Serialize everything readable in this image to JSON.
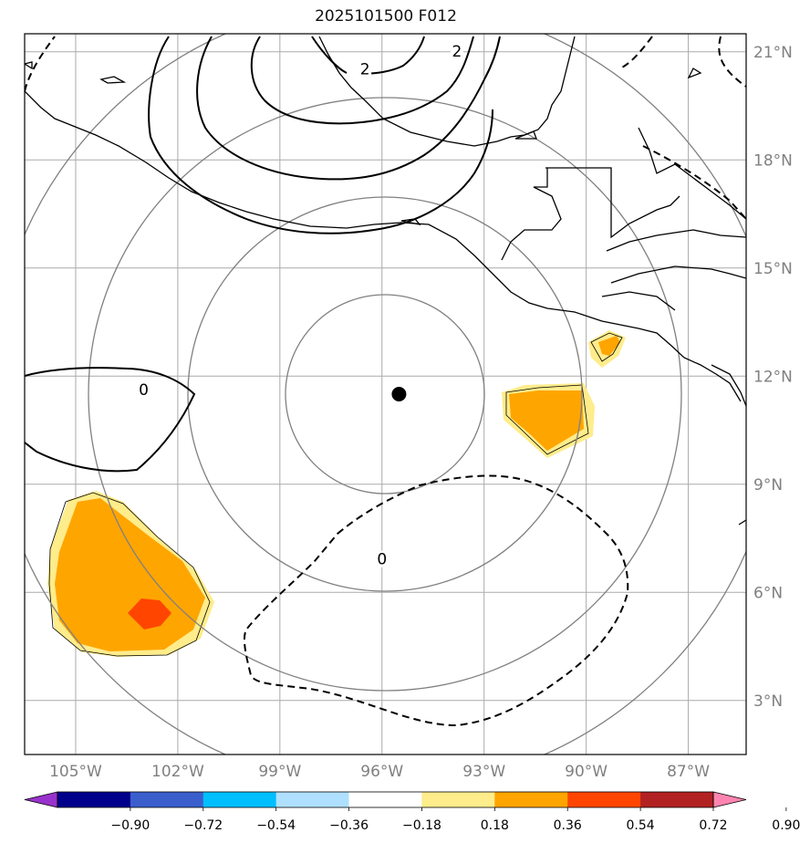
{
  "title": "2025101500 F012",
  "map": {
    "lon_range": [
      -106.5,
      -85.3
    ],
    "lat_range": [
      1.5,
      21.5
    ],
    "lon_ticks": [
      {
        "value": -105,
        "label": "105°W"
      },
      {
        "value": -102,
        "label": "102°W"
      },
      {
        "value": -99,
        "label": "99°W"
      },
      {
        "value": -96,
        "label": "96°W"
      },
      {
        "value": -93,
        "label": "93°W"
      },
      {
        "value": -90,
        "label": "90°W"
      },
      {
        "value": -87,
        "label": "87°W"
      }
    ],
    "lat_ticks": [
      {
        "value": 21,
        "label": "21°N"
      },
      {
        "value": 18,
        "label": "18°N"
      },
      {
        "value": 15,
        "label": "15°N"
      },
      {
        "value": 12,
        "label": "12°N"
      },
      {
        "value": 9,
        "label": "9°N"
      },
      {
        "value": 6,
        "label": "6°N"
      },
      {
        "value": 3,
        "label": "3°N"
      }
    ],
    "center_marker": {
      "lon": -95.5,
      "lat": 11.5
    },
    "contour_labels": [
      {
        "text": "2",
        "lon": -96.5,
        "lat": 20.5
      },
      {
        "text": "2",
        "lon": -93.8,
        "lat": 21.0
      },
      {
        "text": "0",
        "lon": -103.0,
        "lat": 11.6
      },
      {
        "text": "0",
        "lon": -96.0,
        "lat": 6.9
      }
    ]
  },
  "colorbar": {
    "colors": [
      "#9932CC",
      "#00008B",
      "#3A5FCD",
      "#00BFFF",
      "#B0E0FF",
      "#FFFFFF",
      "#FFEC8B",
      "#FFA500",
      "#FF4500",
      "#B22222",
      "#FF85B0"
    ],
    "tick_labels": [
      "−0.90",
      "−0.72",
      "−0.54",
      "−0.36",
      "−0.18",
      "0.18",
      "0.36",
      "0.54",
      "0.72",
      "0.90"
    ]
  },
  "colors": {
    "grid": "#aaaaaa",
    "range_rings": "#808080",
    "coast": "#000000",
    "fill_light": "#FFEC8B",
    "fill_mid": "#FFA500",
    "fill_high": "#FF4500"
  }
}
